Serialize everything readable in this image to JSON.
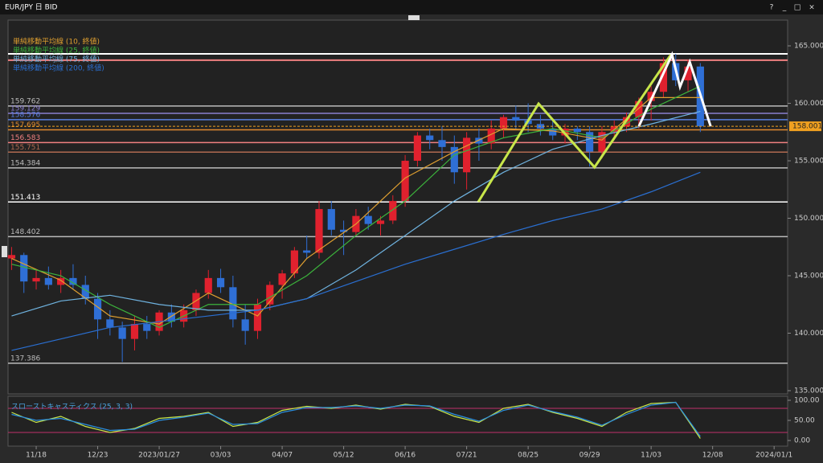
{
  "header": {
    "title": "EUR/JPY 日 BID",
    "buttons": [
      "?",
      "_",
      "□",
      "×"
    ]
  },
  "chart_data": [
    {
      "type": "candlestick",
      "x": [
        0,
        1,
        2,
        3,
        4,
        5,
        6,
        7,
        8,
        9,
        10,
        11,
        12,
        13,
        14,
        15,
        16,
        17,
        18,
        19,
        20,
        21,
        22,
        23,
        24,
        25,
        26,
        27,
        28,
        29,
        30,
        31,
        32,
        33,
        34,
        35,
        36,
        37,
        38,
        39,
        40,
        41,
        42,
        43,
        44,
        45,
        46,
        47,
        48,
        49,
        50,
        51,
        52,
        53,
        54,
        55,
        56
      ],
      "open": [
        146.5,
        146.8,
        144.5,
        144.8,
        144.2,
        144.8,
        144.2,
        143.0,
        141.2,
        140.5,
        139.5,
        140.8,
        140.2,
        141.8,
        141.0,
        142.0,
        143.5,
        144.8,
        144.0,
        141.2,
        140.2,
        142.5,
        144.2,
        145.2,
        147.2,
        147.0,
        150.8,
        149.0,
        148.8,
        150.2,
        149.5,
        149.8,
        151.5,
        155.0,
        157.2,
        156.8,
        156.2,
        154.0,
        157.0,
        156.5,
        157.8,
        158.8,
        158.5,
        158.2,
        157.8,
        157.2,
        157.8,
        157.5,
        155.8,
        157.5,
        158.0,
        158.8,
        160.2,
        161.0,
        163.5,
        162.0,
        163.2
      ],
      "high": [
        147.5,
        147.0,
        145.5,
        145.8,
        145.5,
        146.0,
        145.0,
        143.5,
        142.0,
        141.0,
        141.5,
        141.5,
        142.0,
        142.5,
        142.5,
        143.8,
        145.5,
        145.6,
        145.0,
        142.5,
        143.0,
        144.5,
        145.5,
        147.5,
        148.5,
        151.5,
        151.5,
        149.8,
        150.8,
        151.0,
        150.2,
        152.0,
        155.5,
        157.5,
        157.8,
        158.0,
        157.2,
        157.5,
        157.8,
        158.5,
        159.0,
        159.8,
        160.0,
        159.0,
        158.5,
        158.2,
        158.0,
        158.0,
        158.0,
        158.5,
        159.2,
        160.5,
        161.5,
        164.0,
        164.3,
        163.8,
        163.5
      ],
      "low": [
        145.5,
        143.5,
        143.8,
        143.8,
        143.5,
        143.8,
        142.5,
        139.5,
        139.8,
        137.5,
        138.5,
        139.5,
        139.8,
        140.5,
        140.5,
        141.5,
        143.0,
        143.5,
        140.5,
        139.0,
        139.5,
        142.0,
        143.0,
        144.8,
        146.5,
        146.5,
        148.5,
        146.8,
        148.5,
        149.0,
        148.5,
        149.5,
        151.0,
        154.5,
        156.0,
        155.0,
        153.0,
        152.5,
        155.0,
        156.0,
        157.0,
        157.8,
        157.5,
        157.2,
        156.8,
        156.5,
        156.8,
        154.5,
        155.2,
        156.8,
        157.5,
        157.8,
        158.5,
        160.5,
        161.5,
        161.0,
        157.5
      ],
      "close": [
        146.8,
        144.5,
        144.8,
        144.2,
        144.8,
        144.2,
        143.0,
        141.2,
        140.5,
        139.5,
        140.8,
        140.2,
        141.8,
        141.0,
        142.0,
        143.5,
        144.8,
        144.0,
        141.2,
        140.2,
        142.5,
        144.2,
        145.2,
        147.2,
        147.0,
        150.8,
        149.0,
        148.8,
        150.2,
        149.5,
        149.8,
        151.5,
        155.0,
        157.2,
        156.8,
        156.2,
        154.0,
        157.0,
        156.5,
        157.8,
        158.8,
        158.5,
        158.2,
        157.8,
        157.2,
        157.8,
        157.5,
        155.8,
        157.5,
        158.0,
        158.8,
        160.2,
        161.0,
        163.5,
        162.0,
        163.2,
        158.0
      ],
      "up_color": "#e0212e",
      "down_color": "#2f6fd6",
      "xlim": [
        -0.29,
        63.1
      ],
      "ylim": [
        134.72,
        167.24
      ],
      "yticks": [
        {
          "value": 135,
          "label": "135.000"
        },
        {
          "value": 140,
          "label": "140.000"
        },
        {
          "value": 145,
          "label": "145.000"
        },
        {
          "value": 150,
          "label": "150.000"
        },
        {
          "value": 155,
          "label": "155.000"
        },
        {
          "value": 160,
          "label": "160.000"
        },
        {
          "value": 165,
          "label": "165.000"
        }
      ],
      "xticks": [
        {
          "value": 2,
          "label": "11/18"
        },
        {
          "value": 7,
          "label": "12/23"
        },
        {
          "value": 12,
          "label": "2023/01/27"
        },
        {
          "value": 17,
          "label": "03/03"
        },
        {
          "value": 22,
          "label": "04/07"
        },
        {
          "value": 27,
          "label": "05/12"
        },
        {
          "value": 32,
          "label": "06/16"
        },
        {
          "value": 37,
          "label": "07/21"
        },
        {
          "value": 42,
          "label": "08/25"
        },
        {
          "value": 47,
          "label": "09/29"
        },
        {
          "value": 52,
          "label": "11/03"
        },
        {
          "value": 57,
          "label": "12/08"
        },
        {
          "value": 62,
          "label": "2024/01/1"
        }
      ],
      "series": [
        {
          "name": "単純移動平均線 (10, 終値)",
          "color": "#e0a030",
          "x": [
            0,
            4,
            8,
            12,
            16,
            20,
            24,
            28,
            32,
            36,
            40,
            44,
            48,
            52,
            56
          ],
          "values": [
            146.5,
            144.6,
            141.5,
            140.8,
            143.5,
            141.5,
            146.5,
            149.5,
            153.5,
            155.8,
            157.8,
            157.6,
            156.8,
            160.5,
            160.5
          ]
        },
        {
          "name": "単純移動平均線 (25, 終値)",
          "color": "#3cb43c",
          "x": [
            0,
            4,
            8,
            12,
            16,
            20,
            24,
            28,
            32,
            36,
            40,
            44,
            48,
            52,
            56
          ],
          "values": [
            146,
            145,
            142.5,
            140.5,
            142.5,
            142.5,
            145,
            148.5,
            151.5,
            155.5,
            157,
            157.8,
            157,
            159.5,
            161.5
          ]
        },
        {
          "name": "単純移動平均線 (75, 終値)",
          "color": "#6fb3e0",
          "x": [
            0,
            4,
            8,
            12,
            16,
            20,
            24,
            28,
            32,
            36,
            40,
            44,
            48,
            52,
            56
          ],
          "values": [
            141.5,
            142.8,
            143.3,
            142.5,
            142,
            142,
            143,
            145.5,
            148.5,
            151.5,
            154,
            156,
            157.2,
            158.2,
            159.3
          ]
        },
        {
          "name": "単純移動平均線 (200, 終値)",
          "color": "#2a6fd1",
          "x": [
            0,
            4,
            8,
            12,
            16,
            20,
            24,
            28,
            32,
            36,
            40,
            44,
            48,
            52,
            56
          ],
          "values": [
            138.5,
            139.5,
            140.5,
            141,
            141.5,
            142,
            143,
            144.5,
            146,
            147.3,
            148.6,
            149.8,
            150.8,
            152.3,
            154
          ]
        }
      ],
      "levels": [
        {
          "value": 159.762,
          "color": "#bbbbbb"
        },
        {
          "value": 159.129,
          "color": "#8a7fd0"
        },
        {
          "value": 158.576,
          "color": "#5a7fe0"
        },
        {
          "value": 157.695,
          "color": "#e08a30"
        },
        {
          "value": 156.583,
          "color": "#f08080"
        },
        {
          "value": 155.751,
          "color": "#b06a50"
        },
        {
          "value": 154.384,
          "color": "#bbbbbb"
        },
        {
          "value": 151.413,
          "color": "#ffffff"
        },
        {
          "value": 148.402,
          "color": "#bbbbbb"
        },
        {
          "value": 137.386,
          "color": "#bbbbbb"
        }
      ],
      "unlabeled_levels": [
        {
          "value": 164.3,
          "color": "#ffffff"
        },
        {
          "value": 163.75,
          "color": "#f08080"
        }
      ],
      "zigzags": [
        {
          "color": "#c8e64a",
          "x": [
            37.95,
            42.85,
            47.4,
            53.6
          ],
          "values": [
            151.43,
            159.97,
            154.44,
            164.23
          ]
        },
        {
          "color": "#ffffff",
          "x": [
            51.0,
            53.7,
            54.35,
            55.14,
            56.84
          ],
          "values": [
            158.0,
            164.23,
            161.43,
            163.6,
            158.0
          ]
        }
      ],
      "current_price": 158.001,
      "current_color": "#f0a020"
    },
    {
      "type": "line",
      "title": "スローストキャスティクス (25, 3, 3)",
      "xlim": [
        -0.29,
        63.1
      ],
      "ylim": [
        -14,
        110
      ],
      "yticks": [
        {
          "value": 0,
          "label": "0.00"
        },
        {
          "value": 50,
          "label": "50.00"
        },
        {
          "value": 100,
          "label": "100.00"
        }
      ],
      "levels": [
        {
          "value": 80,
          "color": "#c0306a"
        },
        {
          "value": 20,
          "color": "#c0306a"
        }
      ],
      "series": [
        {
          "color": "#c8e64a",
          "x": [
            0,
            2,
            4,
            6,
            8,
            10,
            12,
            14,
            16,
            18,
            20,
            22,
            24,
            26,
            28,
            30,
            32,
            34,
            36,
            38,
            40,
            42,
            44,
            46,
            48,
            50,
            52,
            54,
            56
          ],
          "values": [
            70,
            45,
            60,
            35,
            20,
            30,
            55,
            60,
            70,
            35,
            45,
            75,
            85,
            80,
            88,
            78,
            90,
            85,
            60,
            45,
            80,
            90,
            70,
            55,
            35,
            70,
            92,
            95,
            5
          ]
        },
        {
          "color": "#2a8fe0",
          "x": [
            0,
            2,
            4,
            6,
            8,
            10,
            12,
            14,
            16,
            18,
            20,
            22,
            24,
            26,
            28,
            30,
            32,
            34,
            36,
            38,
            40,
            42,
            44,
            46,
            48,
            50,
            52,
            54,
            56
          ],
          "values": [
            65,
            50,
            55,
            40,
            25,
            28,
            50,
            58,
            68,
            40,
            42,
            70,
            82,
            82,
            86,
            80,
            88,
            86,
            65,
            48,
            75,
            88,
            72,
            58,
            38,
            65,
            88,
            95,
            10
          ]
        }
      ]
    }
  ]
}
